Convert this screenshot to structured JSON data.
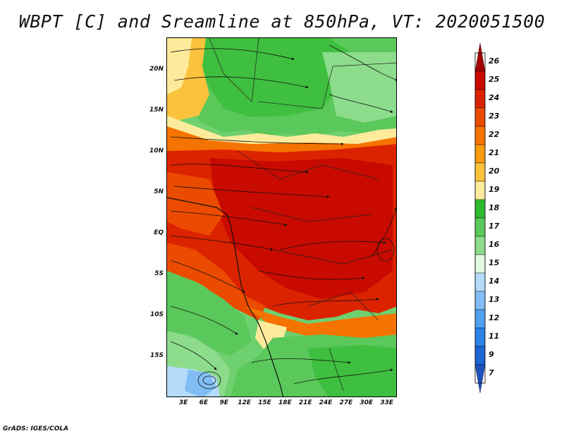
{
  "title": "WBPT [C] and Sreamline at 850hPa, VT: 2020051500",
  "footer": "GrADS: IGES/COLA",
  "map": {
    "variable": "Wet-bulb potential temperature",
    "units": "C",
    "level": "850hPa",
    "valid_time": "2020051500",
    "lat_range": [
      -20,
      24
    ],
    "lon_range": [
      0.5,
      34.5
    ],
    "y_ticks": [
      {
        "label": "20N",
        "lat": 20
      },
      {
        "label": "15N",
        "lat": 15
      },
      {
        "label": "10N",
        "lat": 10
      },
      {
        "label": "5N",
        "lat": 5
      },
      {
        "label": "EQ",
        "lat": 0
      },
      {
        "label": "5S",
        "lat": -5
      },
      {
        "label": "10S",
        "lat": -10
      },
      {
        "label": "15S",
        "lat": -15
      }
    ],
    "x_ticks": [
      {
        "label": "3E",
        "lon": 3
      },
      {
        "label": "6E",
        "lon": 6
      },
      {
        "label": "9E",
        "lon": 9
      },
      {
        "label": "12E",
        "lon": 12
      },
      {
        "label": "15E",
        "lon": 15
      },
      {
        "label": "18E",
        "lon": 18
      },
      {
        "label": "21E",
        "lon": 21
      },
      {
        "label": "24E",
        "lon": 24
      },
      {
        "label": "27E",
        "lon": 27
      },
      {
        "label": "30E",
        "lon": 30
      },
      {
        "label": "33E",
        "lon": 33
      }
    ]
  },
  "colorbar": {
    "labels": [
      "26",
      "25",
      "24",
      "23",
      "22",
      "21",
      "20",
      "19",
      "18",
      "17",
      "16",
      "15",
      "14",
      "13",
      "12",
      "11",
      "9",
      "7"
    ],
    "colors": [
      "#a50000",
      "#c80a00",
      "#dc2300",
      "#eb4b00",
      "#f57300",
      "#f99b0f",
      "#fbc33c",
      "#fdeb9b",
      "#2fb92f",
      "#5ac85a",
      "#8cdc8c",
      "#e1fae1",
      "#b4dcfa",
      "#82bef5",
      "#50a0f0",
      "#2d82e6",
      "#1e64d2",
      "#1e50be"
    ]
  }
}
